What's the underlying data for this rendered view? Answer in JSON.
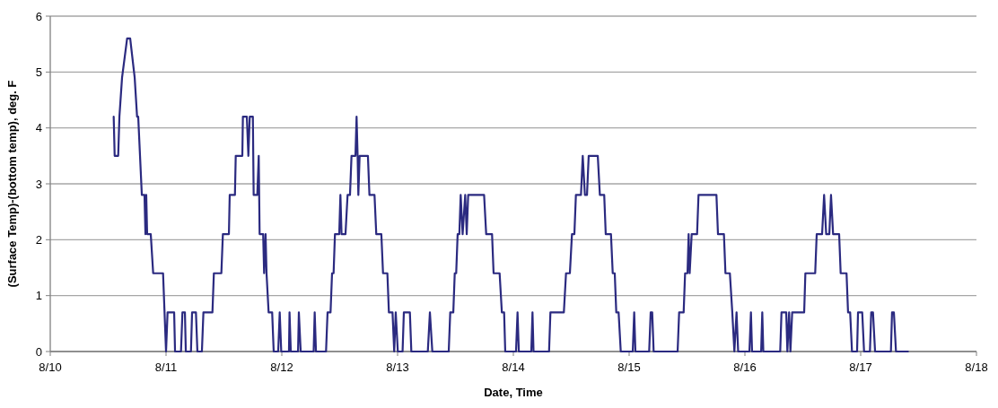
{
  "chart_data": {
    "type": "line",
    "xlabel": "Date, Time",
    "ylabel": "(Surface Temp)-(bottom temp), deg. F",
    "xlim": [
      "--08-10",
      "--08-18"
    ],
    "xticks": [
      {
        "value": "--08-10",
        "label": "8/10"
      },
      {
        "value": "--08-11",
        "label": "8/11"
      },
      {
        "value": "--08-12",
        "label": "8/12"
      },
      {
        "value": "--08-13",
        "label": "8/13"
      },
      {
        "value": "--08-14",
        "label": "8/14"
      },
      {
        "value": "--08-15",
        "label": "8/15"
      },
      {
        "value": "--08-16",
        "label": "8/16"
      },
      {
        "value": "--08-17",
        "label": "8/17"
      },
      {
        "value": "--08-18",
        "label": "8/18"
      }
    ],
    "ylim": [
      0,
      6
    ],
    "yticks": [
      0,
      1,
      2,
      3,
      4,
      5,
      6
    ],
    "grid": "y",
    "marker": "none",
    "line_style": "solid",
    "series": [
      {
        "color": "#2b2a80",
        "x": [
          "--08-10T13:09",
          "--08-10T13:21",
          "--08-10T14:05",
          "--08-10T14:20",
          "--08-10T14:53",
          "--08-10T15:56",
          "--08-10T16:34",
          "--08-10T17:30",
          "--08-10T18:00",
          "--08-10T18:14",
          "--08-10T18:59",
          "--08-10T19:32",
          "--08-10T19:44",
          "--08-10T19:54",
          "--08-10T20:05",
          "--08-10T20:50",
          "--08-10T21:20",
          "--08-10T23:23",
          "--08-11T00:00",
          "--08-11T00:19",
          "--08-11T01:41",
          "--08-11T01:52",
          "--08-11T03:06",
          "--08-11T03:24",
          "--08-11T03:55",
          "--08-11T04:06",
          "--08-11T05:10",
          "--08-11T05:24",
          "--08-11T06:12",
          "--08-11T06:30",
          "--08-11T07:26",
          "--08-11T07:45",
          "--08-11T09:37",
          "--08-11T09:55",
          "--08-11T11:28",
          "--08-11T11:47",
          "--08-11T13:02",
          "--08-11T13:12",
          "--08-11T14:17",
          "--08-11T14:27",
          "--08-11T15:49",
          "--08-11T15:56",
          "--08-11T16:45",
          "--08-11T17:04",
          "--08-11T17:21",
          "--08-11T18:00",
          "--08-11T18:10",
          "--08-11T18:55",
          "--08-11T19:13",
          "--08-11T19:24",
          "--08-11T20:08",
          "--08-11T20:20",
          "--08-11T20:38",
          "--08-11T20:50",
          "--08-11T21:16",
          "--08-11T22:00",
          "--08-11T22:19",
          "--08-11T23:15",
          "--08-11T23:34",
          "--08-11T23:53",
          "--08-12T01:29",
          "--08-12T01:36",
          "--08-12T01:52",
          "--08-12T03:22",
          "--08-12T03:32",
          "--08-12T03:55",
          "--08-12T06:36",
          "--08-12T06:49",
          "--08-12T07:05",
          "--08-12T09:10",
          "--08-12T09:29",
          "--08-12T10:06",
          "--08-12T10:25",
          "--08-12T10:44",
          "--08-12T11:01",
          "--08-12T11:54",
          "--08-12T12:09",
          "--08-12T12:23",
          "--08-12T13:12",
          "--08-12T13:38",
          "--08-12T14:08",
          "--08-12T14:27",
          "--08-12T15:16",
          "--08-12T15:30",
          "--08-12T15:43",
          "--08-12T15:52",
          "--08-12T16:08",
          "--08-12T17:51",
          "--08-12T18:10",
          "--08-12T19:13",
          "--08-12T19:35",
          "--08-12T20:38",
          "--08-12T20:59",
          "--08-12T21:53",
          "--08-12T22:12",
          "--08-12T22:57",
          "--08-12T23:18",
          "--08-12T23:37",
          "--08-13T00:03",
          "--08-13T01:02",
          "--08-13T01:18",
          "--08-13T02:33",
          "--08-13T02:51",
          "--08-13T06:16",
          "--08-13T06:42",
          "--08-13T07:12",
          "--08-13T10:36",
          "--08-13T10:55",
          "--08-13T11:33",
          "--08-13T11:51",
          "--08-13T12:09",
          "--08-13T12:27",
          "--08-13T12:48",
          "--08-13T13:05",
          "--08-13T13:29",
          "--08-13T14:01",
          "--08-13T14:20",
          "--08-13T14:38",
          "--08-13T17:56",
          "--08-13T18:22",
          "--08-13T19:35",
          "--08-13T19:54",
          "--08-13T21:09",
          "--08-13T21:37",
          "--08-13T22:05",
          "--08-13T22:19",
          "--08-14T00:33",
          "--08-14T00:52",
          "--08-14T01:08",
          "--08-14T03:43",
          "--08-14T03:58",
          "--08-14T04:11",
          "--08-14T07:24",
          "--08-14T07:41",
          "--08-14T10:28",
          "--08-14T10:55",
          "--08-14T11:43",
          "--08-14T12:09",
          "--08-14T12:39",
          "--08-14T12:58",
          "--08-14T14:01",
          "--08-14T14:23",
          "--08-14T14:50",
          "--08-14T15:16",
          "--08-14T15:37",
          "--08-14T17:30",
          "--08-14T17:56",
          "--08-14T18:50",
          "--08-14T19:09",
          "--08-14T20:14",
          "--08-14T20:36",
          "--08-14T21:01",
          "--08-14T21:20",
          "--08-14T21:49",
          "--08-14T22:16",
          "--08-15T00:45",
          "--08-15T01:03",
          "--08-15T01:18",
          "--08-15T04:09",
          "--08-15T04:28",
          "--08-15T04:47",
          "--08-15T05:05",
          "--08-15T10:03",
          "--08-15T10:22",
          "--08-15T11:18",
          "--08-15T11:36",
          "--08-15T12:06",
          "--08-15T12:20",
          "--08-15T12:33",
          "--08-15T12:58",
          "--08-15T14:05",
          "--08-15T14:23",
          "--08-15T18:06",
          "--08-15T18:25",
          "--08-15T19:39",
          "--08-15T19:58",
          "--08-15T20:53",
          "--08-15T21:23",
          "--08-15T21:49",
          "--08-15T22:16",
          "--08-15T22:36",
          "--08-16T00:56",
          "--08-16T01:15",
          "--08-16T01:29",
          "--08-16T03:22",
          "--08-16T03:36",
          "--08-16T03:49",
          "--08-16T07:19",
          "--08-16T07:35",
          "--08-16T08:34",
          "--08-16T08:48",
          "--08-16T09:10",
          "--08-16T09:26",
          "--08-16T09:48",
          "--08-16T12:17",
          "--08-16T12:32",
          "--08-16T14:34",
          "--08-16T14:53",
          "--08-16T16:00",
          "--08-16T16:25",
          "--08-16T16:51",
          "--08-16T17:30",
          "--08-16T17:51",
          "--08-16T18:17",
          "--08-16T19:32",
          "--08-16T19:51",
          "--08-16T21:04",
          "--08-16T21:23",
          "--08-16T21:49",
          "--08-16T22:12",
          "--08-16T23:15",
          "--08-16T23:27",
          "--08-17T00:19",
          "--08-17T00:42",
          "--08-17T01:55",
          "--08-17T02:11",
          "--08-17T02:33",
          "--08-17T02:59",
          "--08-17T06:16",
          "--08-17T06:30",
          "--08-17T06:53",
          "--08-17T07:19",
          "--08-17T09:48"
        ],
        "values": [
          4.2,
          3.5,
          3.5,
          4.2,
          4.9,
          5.6,
          5.6,
          4.9,
          4.2,
          4.2,
          2.8,
          2.8,
          2.1,
          2.8,
          2.1,
          2.1,
          1.4,
          1.4,
          0,
          0.7,
          0.7,
          0,
          0,
          0.7,
          0.7,
          0,
          0,
          0.7,
          0.7,
          0,
          0,
          0.7,
          0.7,
          1.4,
          1.4,
          2.1,
          2.1,
          2.8,
          2.8,
          3.5,
          3.5,
          4.2,
          4.2,
          3.5,
          4.2,
          4.2,
          2.8,
          2.8,
          3.5,
          2.1,
          2.1,
          1.4,
          2.1,
          1.4,
          0.7,
          0.7,
          0,
          0,
          0.7,
          0,
          0,
          0.7,
          0,
          0,
          0.7,
          0,
          0,
          0.7,
          0,
          0,
          0.7,
          0.7,
          1.4,
          1.4,
          2.1,
          2.1,
          2.8,
          2.1,
          2.1,
          2.8,
          2.8,
          3.5,
          3.5,
          4.2,
          3.5,
          2.8,
          3.5,
          3.5,
          2.8,
          2.8,
          2.1,
          2.1,
          1.4,
          1.4,
          0.7,
          0.7,
          0,
          0.7,
          0,
          0,
          0.7,
          0.7,
          0,
          0,
          0.7,
          0,
          0,
          0.7,
          0.7,
          1.4,
          1.4,
          2.1,
          2.1,
          2.8,
          2.1,
          2.8,
          2.1,
          2.8,
          2.8,
          2.1,
          2.1,
          1.4,
          1.4,
          0.7,
          0.7,
          0,
          0,
          0.7,
          0,
          0,
          0.7,
          0,
          0,
          0.7,
          0.7,
          1.4,
          1.4,
          2.1,
          2.1,
          2.8,
          2.8,
          3.5,
          2.8,
          2.8,
          3.5,
          3.5,
          2.8,
          2.8,
          2.1,
          2.1,
          1.4,
          1.4,
          0.7,
          0.7,
          0,
          0,
          0.7,
          0,
          0,
          0.7,
          0.7,
          0,
          0,
          0.7,
          0.7,
          1.4,
          1.4,
          2.1,
          1.4,
          2.1,
          2.1,
          2.8,
          2.8,
          2.1,
          2.1,
          1.4,
          1.4,
          0.7,
          0,
          0.7,
          0,
          0,
          0.7,
          0,
          0,
          0.7,
          0,
          0,
          0.7,
          0.7,
          0,
          0.7,
          0,
          0.7,
          0.7,
          1.4,
          1.4,
          2.1,
          2.1,
          2.8,
          2.1,
          2.1,
          2.8,
          2.1,
          2.1,
          1.4,
          1.4,
          0.7,
          0.7,
          0,
          0,
          0.7,
          0.7,
          0,
          0,
          0.7,
          0.7,
          0,
          0,
          0.7,
          0.7,
          0,
          0
        ]
      }
    ]
  }
}
